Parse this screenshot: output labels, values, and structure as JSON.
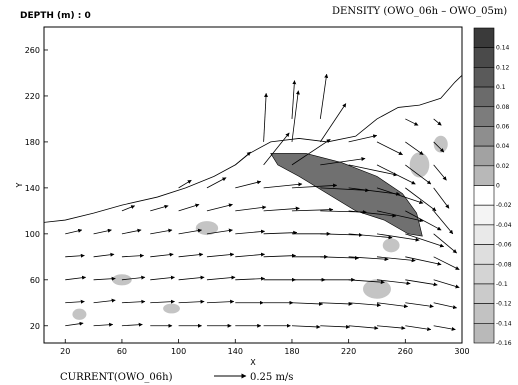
{
  "header": {
    "depth_label": "DEPTH (m) : 0",
    "density_title": "DENSITY (OWO_06h – OWO_05m)"
  },
  "footer": {
    "current_label": "CURRENT(OWO_06h)",
    "ref_vector_label": "0.25 m/s"
  },
  "chart_data": {
    "type": "heatmap",
    "title": "DENSITY (OWO_06h – OWO_05m)",
    "xlabel": "X",
    "ylabel": "Y",
    "xlim": [
      5,
      300
    ],
    "ylim": [
      5,
      280
    ],
    "x_ticks": [
      20,
      60,
      100,
      140,
      180,
      220,
      260,
      300
    ],
    "y_ticks": [
      20,
      60,
      100,
      140,
      180,
      220,
      260
    ],
    "colorbar": {
      "levels": [
        0.14,
        0.12,
        0.1,
        0.08,
        0.06,
        0.04,
        0.02,
        0,
        -0.02,
        -0.04,
        -0.06,
        -0.08,
        -0.1,
        -0.12,
        -0.14,
        -0.16
      ],
      "labels": [
        "0.14",
        "0.12",
        "0.1",
        "0.08",
        "0.06",
        "0.04",
        "0.02",
        "0",
        "-0.02",
        "-0.04",
        "-0.06",
        "-0.08",
        "-0.1",
        "-0.12",
        "-0.14",
        "-0.16"
      ],
      "fills": [
        "#3a3a3a",
        "#4a4a4a",
        "#5a5a5a",
        "#6b6b6b",
        "#7c7c7c",
        "#8e8e8e",
        "#a2a2a2",
        "#b8b8b8",
        "#ffffff",
        "#f4f4f4",
        "#e9e9e9",
        "#dedede",
        "#d4d4d4",
        "#cbcbcb",
        "#c2c2c2",
        "#b9b9b9"
      ]
    },
    "coastline": [
      [
        5,
        110
      ],
      [
        20,
        112
      ],
      [
        40,
        118
      ],
      [
        60,
        125
      ],
      [
        85,
        132
      ],
      [
        105,
        140
      ],
      [
        125,
        150
      ],
      [
        140,
        160
      ],
      [
        150,
        170
      ],
      [
        165,
        180
      ],
      [
        185,
        183
      ],
      [
        205,
        180
      ],
      [
        225,
        185
      ],
      [
        240,
        200
      ],
      [
        255,
        210
      ],
      [
        270,
        212
      ],
      [
        285,
        218
      ],
      [
        295,
        232
      ],
      [
        300,
        238
      ]
    ],
    "positive_region": [
      [
        165,
        170
      ],
      [
        190,
        170
      ],
      [
        215,
        162
      ],
      [
        240,
        150
      ],
      [
        258,
        135
      ],
      [
        268,
        118
      ],
      [
        272,
        98
      ],
      [
        262,
        100
      ],
      [
        245,
        112
      ],
      [
        225,
        120
      ],
      [
        205,
        135
      ],
      [
        185,
        150
      ],
      [
        170,
        160
      ]
    ],
    "land_spots": [
      [
        120,
        105,
        16,
        10
      ],
      [
        240,
        52,
        20,
        14
      ],
      [
        60,
        60,
        14,
        8
      ],
      [
        95,
        35,
        12,
        7
      ],
      [
        270,
        160,
        14,
        18
      ],
      [
        285,
        178,
        10,
        12
      ],
      [
        30,
        30,
        10,
        8
      ],
      [
        250,
        90,
        12,
        10
      ]
    ],
    "vector_reference": {
      "u": 0.25,
      "v": 0
    },
    "vectors": [
      [
        20,
        20,
        0.14,
        0.02
      ],
      [
        20,
        40,
        0.15,
        0.01
      ],
      [
        20,
        60,
        0.16,
        0.02
      ],
      [
        20,
        80,
        0.15,
        0.01
      ],
      [
        20,
        100,
        0.13,
        0.03
      ],
      [
        40,
        20,
        0.15,
        0.01
      ],
      [
        40,
        40,
        0.17,
        0.02
      ],
      [
        40,
        60,
        0.17,
        0.01
      ],
      [
        40,
        80,
        0.16,
        0.02
      ],
      [
        40,
        100,
        0.14,
        0.03
      ],
      [
        60,
        20,
        0.16,
        0.01
      ],
      [
        60,
        40,
        0.18,
        0.01
      ],
      [
        60,
        60,
        0.18,
        0.02
      ],
      [
        60,
        80,
        0.17,
        0.01
      ],
      [
        60,
        100,
        0.15,
        0.03
      ],
      [
        60,
        120,
        0.1,
        0.04
      ],
      [
        80,
        20,
        0.17,
        0.0
      ],
      [
        80,
        40,
        0.19,
        0.01
      ],
      [
        80,
        60,
        0.19,
        0.02
      ],
      [
        80,
        80,
        0.18,
        0.02
      ],
      [
        80,
        100,
        0.17,
        0.03
      ],
      [
        80,
        120,
        0.14,
        0.04
      ],
      [
        100,
        20,
        0.18,
        0.0
      ],
      [
        100,
        40,
        0.2,
        0.01
      ],
      [
        100,
        60,
        0.2,
        0.02
      ],
      [
        100,
        80,
        0.19,
        0.02
      ],
      [
        100,
        100,
        0.18,
        0.03
      ],
      [
        100,
        120,
        0.16,
        0.05
      ],
      [
        100,
        140,
        0.1,
        0.06
      ],
      [
        120,
        20,
        0.19,
        0.0
      ],
      [
        120,
        40,
        0.21,
        0.01
      ],
      [
        120,
        60,
        0.22,
        0.02
      ],
      [
        120,
        80,
        0.21,
        0.02
      ],
      [
        120,
        100,
        0.2,
        0.03
      ],
      [
        120,
        120,
        0.2,
        0.05
      ],
      [
        120,
        140,
        0.15,
        0.08
      ],
      [
        140,
        20,
        0.2,
        0.0
      ],
      [
        140,
        40,
        0.22,
        0.0
      ],
      [
        140,
        60,
        0.23,
        0.01
      ],
      [
        140,
        80,
        0.23,
        0.02
      ],
      [
        140,
        100,
        0.23,
        0.02
      ],
      [
        140,
        120,
        0.24,
        0.03
      ],
      [
        140,
        140,
        0.2,
        0.05
      ],
      [
        140,
        160,
        0.12,
        0.1
      ],
      [
        160,
        20,
        0.21,
        0.0
      ],
      [
        160,
        40,
        0.23,
        0.0
      ],
      [
        160,
        60,
        0.25,
        0.0
      ],
      [
        160,
        80,
        0.25,
        0.01
      ],
      [
        160,
        100,
        0.26,
        0.01
      ],
      [
        160,
        120,
        0.28,
        0.02
      ],
      [
        160,
        140,
        0.3,
        0.03
      ],
      [
        160,
        160,
        0.2,
        0.25
      ],
      [
        160,
        180,
        0.02,
        0.38
      ],
      [
        180,
        20,
        0.22,
        -0.01
      ],
      [
        180,
        40,
        0.24,
        -0.01
      ],
      [
        180,
        60,
        0.26,
        0.0
      ],
      [
        180,
        80,
        0.28,
        0.0
      ],
      [
        180,
        100,
        0.3,
        0.0
      ],
      [
        180,
        120,
        0.32,
        0.01
      ],
      [
        180,
        140,
        0.35,
        0.02
      ],
      [
        180,
        160,
        0.3,
        0.2
      ],
      [
        180,
        180,
        0.05,
        0.4
      ],
      [
        180,
        200,
        0.02,
        0.3
      ],
      [
        200,
        20,
        0.23,
        -0.01
      ],
      [
        200,
        40,
        0.25,
        -0.01
      ],
      [
        200,
        60,
        0.27,
        0.0
      ],
      [
        200,
        80,
        0.3,
        -0.01
      ],
      [
        200,
        100,
        0.33,
        -0.01
      ],
      [
        200,
        120,
        0.36,
        -0.01
      ],
      [
        200,
        140,
        0.38,
        -0.02
      ],
      [
        200,
        160,
        0.35,
        0.05
      ],
      [
        200,
        180,
        0.2,
        0.3
      ],
      [
        200,
        200,
        0.05,
        0.35
      ],
      [
        220,
        20,
        0.23,
        -0.02
      ],
      [
        220,
        40,
        0.25,
        -0.02
      ],
      [
        220,
        60,
        0.28,
        -0.02
      ],
      [
        220,
        80,
        0.31,
        -0.02
      ],
      [
        220,
        100,
        0.34,
        -0.03
      ],
      [
        220,
        120,
        0.37,
        -0.04
      ],
      [
        220,
        140,
        0.4,
        -0.05
      ],
      [
        220,
        160,
        0.38,
        -0.08
      ],
      [
        220,
        180,
        0.22,
        0.05
      ],
      [
        240,
        20,
        0.22,
        -0.02
      ],
      [
        240,
        40,
        0.24,
        -0.03
      ],
      [
        240,
        60,
        0.26,
        -0.03
      ],
      [
        240,
        80,
        0.3,
        -0.03
      ],
      [
        240,
        100,
        0.33,
        -0.05
      ],
      [
        240,
        120,
        0.36,
        -0.08
      ],
      [
        240,
        140,
        0.36,
        -0.12
      ],
      [
        240,
        160,
        0.3,
        -0.15
      ],
      [
        240,
        180,
        0.2,
        -0.1
      ],
      [
        260,
        20,
        0.2,
        -0.03
      ],
      [
        260,
        40,
        0.22,
        -0.03
      ],
      [
        260,
        60,
        0.25,
        -0.04
      ],
      [
        260,
        80,
        0.28,
        -0.06
      ],
      [
        260,
        100,
        0.3,
        -0.1
      ],
      [
        260,
        120,
        0.28,
        -0.15
      ],
      [
        260,
        140,
        0.24,
        -0.18
      ],
      [
        260,
        160,
        0.2,
        -0.15
      ],
      [
        260,
        180,
        0.14,
        -0.1
      ],
      [
        260,
        200,
        0.1,
        -0.05
      ],
      [
        280,
        20,
        0.17,
        -0.03
      ],
      [
        280,
        40,
        0.18,
        -0.04
      ],
      [
        280,
        60,
        0.2,
        -0.06
      ],
      [
        280,
        80,
        0.2,
        -0.1
      ],
      [
        280,
        100,
        0.18,
        -0.15
      ],
      [
        280,
        120,
        0.15,
        -0.18
      ],
      [
        280,
        140,
        0.12,
        -0.16
      ],
      [
        280,
        160,
        0.1,
        -0.12
      ],
      [
        280,
        180,
        0.08,
        -0.08
      ],
      [
        280,
        200,
        0.06,
        -0.05
      ],
      [
        300,
        20,
        0.1,
        -0.03
      ],
      [
        300,
        40,
        0.1,
        -0.04
      ],
      [
        300,
        60,
        0.1,
        -0.06
      ],
      [
        300,
        80,
        0.1,
        -0.08
      ],
      [
        300,
        100,
        0.08,
        -0.1
      ],
      [
        300,
        120,
        0.06,
        -0.1
      ]
    ]
  }
}
